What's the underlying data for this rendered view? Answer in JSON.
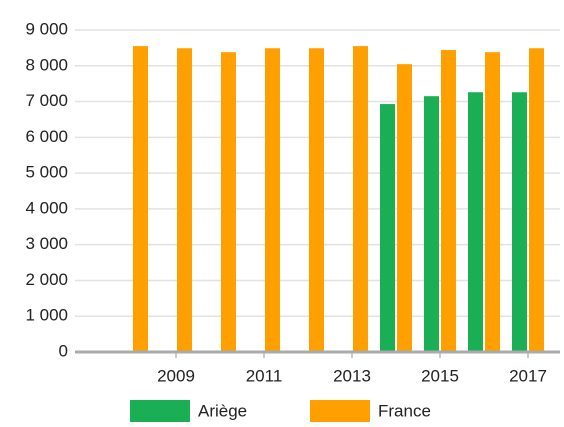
{
  "chart_data": {
    "type": "bar",
    "categories": [
      null,
      "2009",
      null,
      "2011",
      null,
      "2013",
      null,
      "2015",
      null,
      "2017"
    ],
    "series": [
      {
        "name": "Ariège",
        "color": "#1aaf54",
        "values": [
          null,
          null,
          null,
          null,
          null,
          null,
          6930,
          7150,
          7260,
          7260
        ]
      },
      {
        "name": "France",
        "color": "#ff9f00",
        "values": [
          8550,
          8490,
          8380,
          8490,
          8490,
          8550,
          8045,
          8440,
          8380,
          8490
        ]
      }
    ],
    "ylim": [
      0,
      9000
    ],
    "yticks": [
      0,
      {
        "value": 1000,
        "label": "1 000"
      },
      {
        "value": 2000,
        "label": "2 000"
      },
      {
        "value": 3000,
        "label": "3 000"
      },
      {
        "value": 4000,
        "label": "4 000"
      },
      {
        "value": 5000,
        "label": "5 000"
      },
      {
        "value": 6000,
        "label": "6 000"
      },
      {
        "value": 7000,
        "label": "7 000"
      },
      {
        "value": 8000,
        "label": "8 000"
      },
      {
        "value": 9000,
        "label": "9 000"
      }
    ],
    "grid": true,
    "legend": "bottom"
  }
}
